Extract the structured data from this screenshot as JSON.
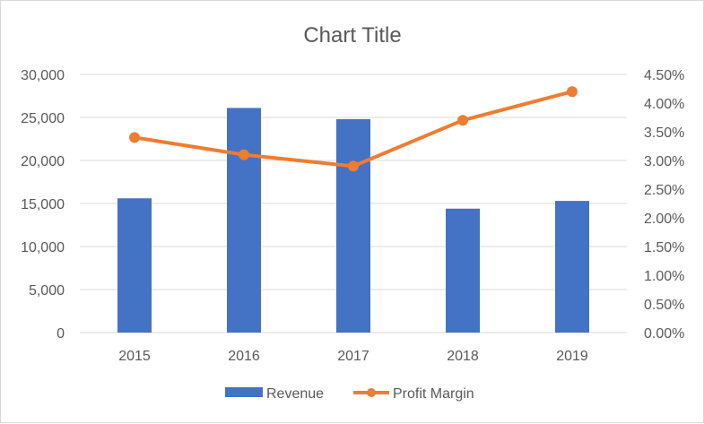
{
  "chart_data": {
    "type": "bar",
    "title": "Chart Title",
    "categories": [
      "2015",
      "2016",
      "2017",
      "2018",
      "2019"
    ],
    "series": [
      {
        "name": "Revenue",
        "type": "bar",
        "axis": "left",
        "color": "#4472C4",
        "values": [
          15600,
          26100,
          24800,
          14400,
          15300
        ]
      },
      {
        "name": "Profit Margin",
        "type": "line",
        "axis": "right",
        "color": "#ED7D31",
        "values": [
          0.034,
          0.031,
          0.029,
          0.037,
          0.042
        ]
      }
    ],
    "y_left": {
      "ylim": [
        0,
        30000
      ],
      "ticks": [
        "0",
        "5,000",
        "10,000",
        "15,000",
        "20,000",
        "25,000",
        "30,000"
      ]
    },
    "y_right": {
      "ylim": [
        0,
        0.045
      ],
      "ticks": [
        "0.00%",
        "0.50%",
        "1.00%",
        "1.50%",
        "2.00%",
        "2.50%",
        "3.00%",
        "3.50%",
        "4.00%",
        "4.50%"
      ]
    },
    "grid": true,
    "legend": "bottom"
  }
}
